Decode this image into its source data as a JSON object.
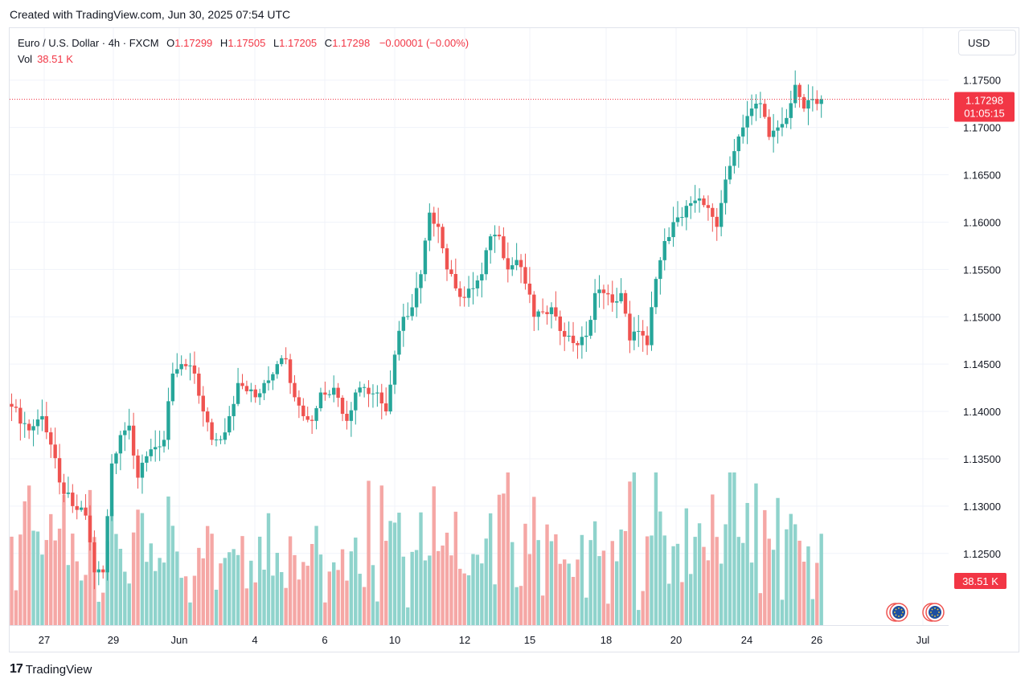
{
  "caption": "Created with TradingView.com, Jun 30, 2025 07:54 UTC",
  "legend": {
    "symbol": "Euro / U.S. Dollar · 4h · FXCM",
    "open_label": "O",
    "open": "1.17299",
    "high_label": "H",
    "high": "1.17505",
    "low_label": "L",
    "low": "1.17205",
    "close_label": "C",
    "close": "1.17298",
    "change": "−0.00001 (−0.00%)",
    "vol_label": "Vol",
    "vol_value": "38.51 K"
  },
  "currency": "USD",
  "price_badge": {
    "price": "1.17298",
    "countdown": "01:05:15"
  },
  "volume_badge": "38.51 K",
  "footer": {
    "brand_mark": "17",
    "brand_name": "TradingView"
  },
  "colors": {
    "up": "#26a69a",
    "down": "#ef5350",
    "vol_up": "#8fd3cc",
    "vol_down": "#f5a7a5",
    "badge": "#f23645"
  },
  "chart_data": {
    "type": "candlestick",
    "interval": "4h",
    "y_axis_ticks": [
      "1.17500",
      "1.17000",
      "1.16500",
      "1.16000",
      "1.15500",
      "1.15000",
      "1.14500",
      "1.14000",
      "1.13500",
      "1.13000",
      "1.12500"
    ],
    "ylim": [
      1.1215,
      1.1785
    ],
    "x_axis_ticks": [
      "27",
      "29",
      "Jun",
      "4",
      "6",
      "10",
      "12",
      "15",
      "18",
      "20",
      "24",
      "26",
      "Jul"
    ],
    "last_price": 1.17298,
    "anchors": [
      {
        "i": 0,
        "v": 1.1405
      },
      {
        "i": 4,
        "v": 1.138
      },
      {
        "i": 7,
        "v": 1.1395
      },
      {
        "i": 9,
        "v": 1.1365
      },
      {
        "i": 11,
        "v": 1.1325
      },
      {
        "i": 14,
        "v": 1.13
      },
      {
        "i": 17,
        "v": 1.129
      },
      {
        "i": 19,
        "v": 1.123
      },
      {
        "i": 21,
        "v": 1.123
      },
      {
        "i": 23,
        "v": 1.1345
      },
      {
        "i": 25,
        "v": 1.1375
      },
      {
        "i": 27,
        "v": 1.1385
      },
      {
        "i": 29,
        "v": 1.133
      },
      {
        "i": 32,
        "v": 1.136
      },
      {
        "i": 35,
        "v": 1.137
      },
      {
        "i": 37,
        "v": 1.144
      },
      {
        "i": 39,
        "v": 1.145
      },
      {
        "i": 42,
        "v": 1.144
      },
      {
        "i": 44,
        "v": 1.14
      },
      {
        "i": 46,
        "v": 1.137
      },
      {
        "i": 48,
        "v": 1.137
      },
      {
        "i": 50,
        "v": 1.1395
      },
      {
        "i": 52,
        "v": 1.143
      },
      {
        "i": 56,
        "v": 1.1415
      },
      {
        "i": 58,
        "v": 1.143
      },
      {
        "i": 61,
        "v": 1.145
      },
      {
        "i": 63,
        "v": 1.1455
      },
      {
        "i": 65,
        "v": 1.1415
      },
      {
        "i": 67,
        "v": 1.1395
      },
      {
        "i": 69,
        "v": 1.139
      },
      {
        "i": 71,
        "v": 1.142
      },
      {
        "i": 74,
        "v": 1.1425
      },
      {
        "i": 77,
        "v": 1.139
      },
      {
        "i": 79,
        "v": 1.142
      },
      {
        "i": 81,
        "v": 1.1425
      },
      {
        "i": 84,
        "v": 1.142
      },
      {
        "i": 86,
        "v": 1.14
      },
      {
        "i": 88,
        "v": 1.146
      },
      {
        "i": 90,
        "v": 1.15
      },
      {
        "i": 92,
        "v": 1.151
      },
      {
        "i": 94,
        "v": 1.1545
      },
      {
        "i": 96,
        "v": 1.161
      },
      {
        "i": 98,
        "v": 1.1595
      },
      {
        "i": 100,
        "v": 1.155
      },
      {
        "i": 102,
        "v": 1.153
      },
      {
        "i": 104,
        "v": 1.152
      },
      {
        "i": 106,
        "v": 1.153
      },
      {
        "i": 108,
        "v": 1.1545
      },
      {
        "i": 110,
        "v": 1.1585
      },
      {
        "i": 112,
        "v": 1.1585
      },
      {
        "i": 114,
        "v": 1.155
      },
      {
        "i": 116,
        "v": 1.156
      },
      {
        "i": 118,
        "v": 1.1535
      },
      {
        "i": 120,
        "v": 1.15
      },
      {
        "i": 122,
        "v": 1.1505
      },
      {
        "i": 124,
        "v": 1.151
      },
      {
        "i": 126,
        "v": 1.1485
      },
      {
        "i": 128,
        "v": 1.148
      },
      {
        "i": 130,
        "v": 1.147
      },
      {
        "i": 132,
        "v": 1.148
      },
      {
        "i": 134,
        "v": 1.1525
      },
      {
        "i": 136,
        "v": 1.1525
      },
      {
        "i": 138,
        "v": 1.1515
      },
      {
        "i": 140,
        "v": 1.1525
      },
      {
        "i": 142,
        "v": 1.1475
      },
      {
        "i": 144,
        "v": 1.1485
      },
      {
        "i": 146,
        "v": 1.147
      },
      {
        "i": 148,
        "v": 1.154
      },
      {
        "i": 150,
        "v": 1.158
      },
      {
        "i": 152,
        "v": 1.16
      },
      {
        "i": 154,
        "v": 1.1605
      },
      {
        "i": 156,
        "v": 1.162
      },
      {
        "i": 158,
        "v": 1.1625
      },
      {
        "i": 160,
        "v": 1.1615
      },
      {
        "i": 162,
        "v": 1.1595
      },
      {
        "i": 164,
        "v": 1.1645
      },
      {
        "i": 166,
        "v": 1.1675
      },
      {
        "i": 168,
        "v": 1.17
      },
      {
        "i": 170,
        "v": 1.172
      },
      {
        "i": 172,
        "v": 1.1725
      },
      {
        "i": 174,
        "v": 1.169
      },
      {
        "i": 176,
        "v": 1.17
      },
      {
        "i": 178,
        "v": 1.171
      },
      {
        "i": 180,
        "v": 1.1745
      },
      {
        "i": 182,
        "v": 1.172
      },
      {
        "i": 184,
        "v": 1.173
      },
      {
        "i": 186,
        "v": 1.17298
      }
    ]
  }
}
